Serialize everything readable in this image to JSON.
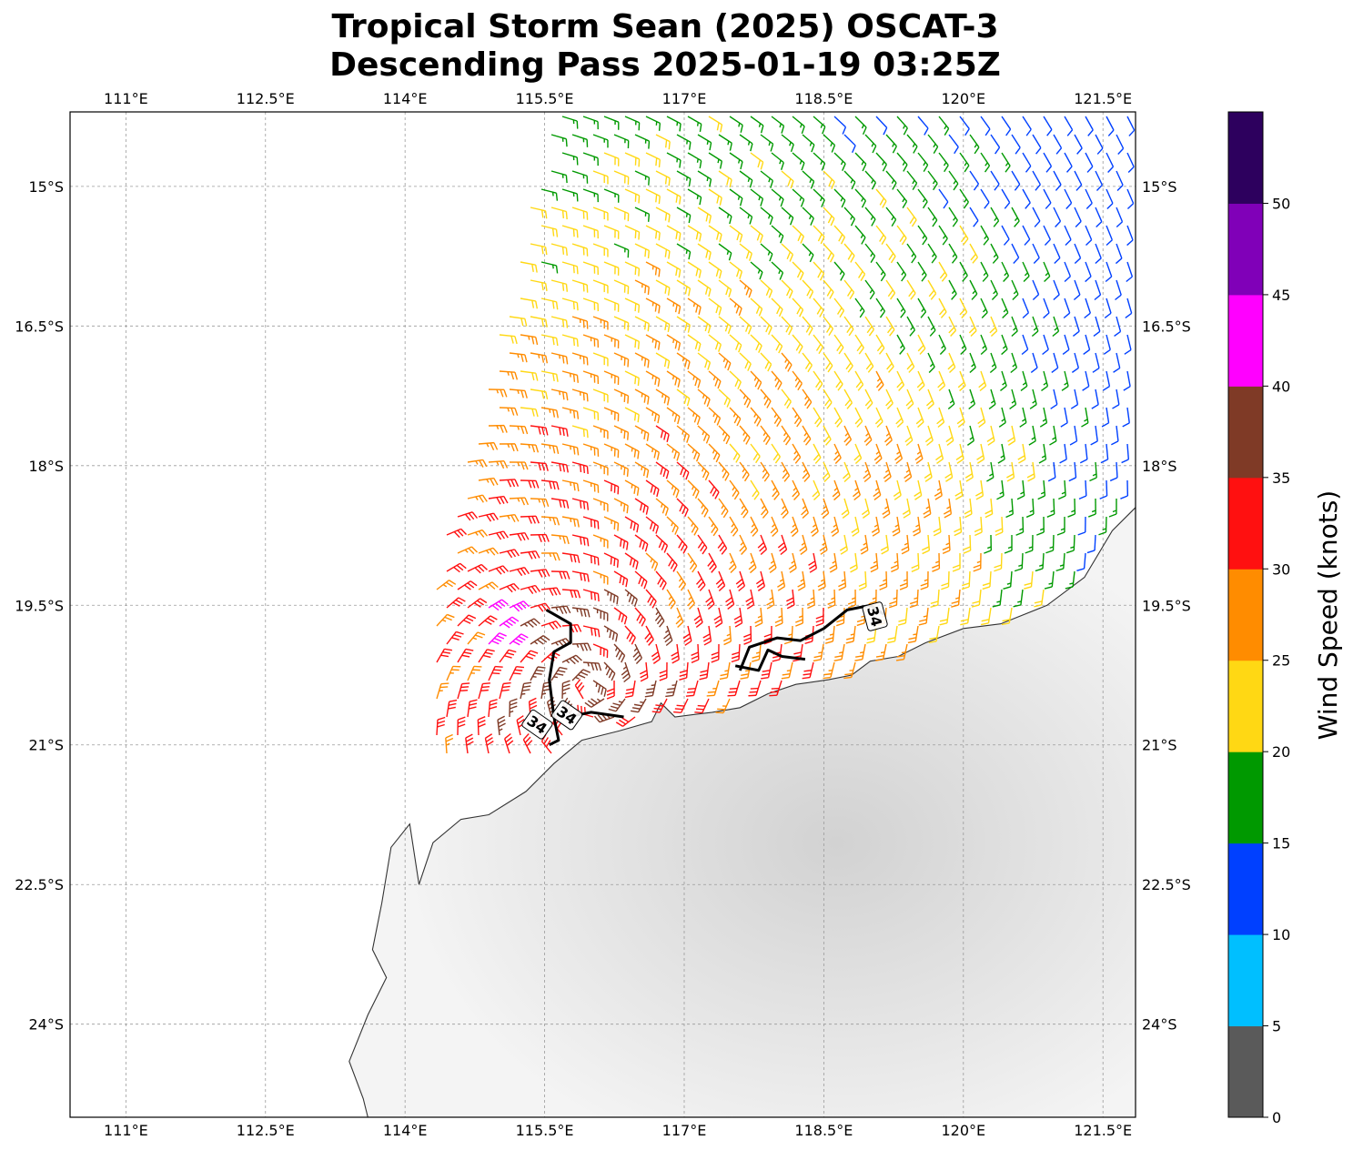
{
  "title": {
    "line1": "Tropical Storm Sean (2025) OSCAT-3",
    "line2": "Descending Pass 2025-01-19 03:25Z"
  },
  "map": {
    "lon_range": [
      110.4,
      121.85
    ],
    "lat_range": [
      -25.0,
      -14.2
    ],
    "lon_ticks": [
      {
        "value": 111.0,
        "label": "111°E"
      },
      {
        "value": 112.5,
        "label": "112.5°E"
      },
      {
        "value": 114.0,
        "label": "114°E"
      },
      {
        "value": 115.5,
        "label": "115.5°E"
      },
      {
        "value": 117.0,
        "label": "117°E"
      },
      {
        "value": 118.5,
        "label": "118.5°E"
      },
      {
        "value": 120.0,
        "label": "120°E"
      },
      {
        "value": 121.5,
        "label": "121.5°E"
      }
    ],
    "lat_ticks": [
      {
        "value": -15.0,
        "label": "15°S"
      },
      {
        "value": -16.5,
        "label": "16.5°S"
      },
      {
        "value": -18.0,
        "label": "18°S"
      },
      {
        "value": -19.5,
        "label": "19.5°S"
      },
      {
        "value": -21.0,
        "label": "21°S"
      },
      {
        "value": -22.5,
        "label": "22.5°S"
      },
      {
        "value": -24.0,
        "label": "24°S"
      }
    ],
    "grid": true,
    "coastline": [
      [
        121.85,
        -18.45
      ],
      [
        121.6,
        -18.7
      ],
      [
        121.3,
        -19.2
      ],
      [
        120.9,
        -19.5
      ],
      [
        120.4,
        -19.7
      ],
      [
        120.0,
        -19.75
      ],
      [
        119.6,
        -19.9
      ],
      [
        119.3,
        -20.05
      ],
      [
        119.0,
        -20.1
      ],
      [
        118.8,
        -20.25
      ],
      [
        118.55,
        -20.3
      ],
      [
        118.2,
        -20.35
      ],
      [
        117.9,
        -20.45
      ],
      [
        117.6,
        -20.6
      ],
      [
        117.3,
        -20.65
      ],
      [
        116.9,
        -20.7
      ],
      [
        116.75,
        -20.55
      ],
      [
        116.65,
        -20.75
      ],
      [
        116.3,
        -20.85
      ],
      [
        115.9,
        -20.95
      ],
      [
        115.6,
        -21.2
      ],
      [
        115.3,
        -21.5
      ],
      [
        114.9,
        -21.75
      ],
      [
        114.6,
        -21.8
      ],
      [
        114.3,
        -22.05
      ],
      [
        114.15,
        -22.5
      ],
      [
        114.05,
        -21.85
      ],
      [
        113.85,
        -22.1
      ],
      [
        113.75,
        -22.7
      ],
      [
        113.65,
        -23.2
      ],
      [
        113.8,
        -23.5
      ],
      [
        113.6,
        -23.9
      ],
      [
        113.4,
        -24.4
      ],
      [
        113.55,
        -24.8
      ],
      [
        113.6,
        -25.0
      ]
    ],
    "land_shading": "#e6e6e6"
  },
  "wind_contours": [
    {
      "value": 34,
      "label": "34",
      "path": [
        [
          115.52,
          -19.55
        ],
        [
          115.78,
          -19.7
        ],
        [
          115.78,
          -19.9
        ],
        [
          115.6,
          -20.0
        ],
        [
          115.55,
          -20.3
        ],
        [
          115.6,
          -20.7
        ],
        [
          115.65,
          -20.95
        ],
        [
          115.55,
          -21.0
        ]
      ]
    },
    {
      "value": 34,
      "label": "34",
      "path": [
        [
          115.75,
          -20.7
        ],
        [
          116.0,
          -20.65
        ],
        [
          116.35,
          -20.7
        ]
      ]
    },
    {
      "value": 34,
      "label": "34",
      "path": [
        [
          117.6,
          -20.2
        ],
        [
          117.7,
          -19.95
        ],
        [
          118.0,
          -19.85
        ],
        [
          118.25,
          -19.88
        ],
        [
          118.5,
          -19.75
        ],
        [
          118.75,
          -19.55
        ],
        [
          119.0,
          -19.5
        ],
        [
          119.15,
          -19.6
        ]
      ]
    },
    {
      "value": 34,
      "label": "",
      "path": [
        [
          117.55,
          -20.15
        ],
        [
          117.8,
          -20.2
        ],
        [
          117.9,
          -19.98
        ],
        [
          118.05,
          -20.05
        ],
        [
          118.3,
          -20.08
        ]
      ]
    }
  ],
  "contour_labels": [
    {
      "label": "34",
      "lon": 115.42,
      "lat": -20.78
    },
    {
      "label": "34",
      "lon": 115.74,
      "lat": -20.68
    },
    {
      "label": "34",
      "lon": 119.05,
      "lat": -19.62
    }
  ],
  "wind_speed_colors": [
    {
      "range": "0-5",
      "color": "#5a5a5a"
    },
    {
      "range": "5-10",
      "color": "#00bfff"
    },
    {
      "range": "10-15",
      "color": "#0040ff"
    },
    {
      "range": "15-20",
      "color": "#009900"
    },
    {
      "range": "20-25",
      "color": "#ffd814"
    },
    {
      "range": "25-30",
      "color": "#ff8c00"
    },
    {
      "range": "30-35",
      "color": "#ff1010"
    },
    {
      "range": "35-40",
      "color": "#7f3a26"
    },
    {
      "range": "40-45",
      "color": "#ff00ff"
    },
    {
      "range": "45-50",
      "color": "#8000b8"
    },
    {
      "range": "50-55",
      "color": "#2d005e"
    }
  ],
  "colorbar": {
    "label": "Wind Speed (knots)",
    "ticks": [
      "0",
      "5",
      "10",
      "15",
      "20",
      "25",
      "30",
      "35",
      "40",
      "45",
      "50"
    ]
  }
}
